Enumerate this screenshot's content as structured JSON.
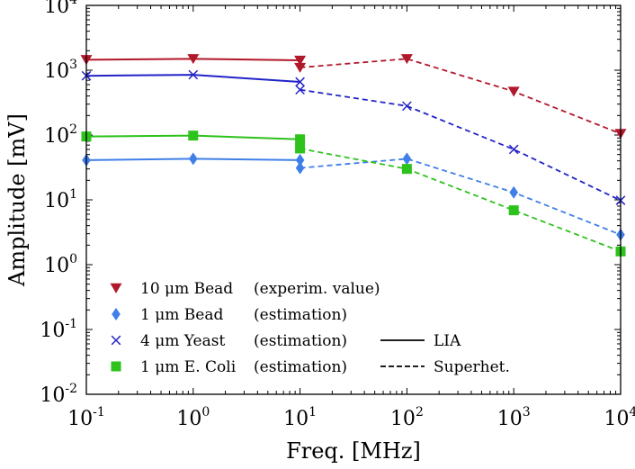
{
  "chart_data": {
    "type": "line",
    "xscale": "log",
    "yscale": "log",
    "xlabel": "Freq. [MHz]",
    "ylabel": "Amplitude [mV]",
    "xlim": [
      0.1,
      10000
    ],
    "ylim": [
      0.01,
      10000
    ],
    "x_ticks": [
      {
        "value": 0.1,
        "base": "10",
        "exp": "-1"
      },
      {
        "value": 1,
        "base": "10",
        "exp": "0"
      },
      {
        "value": 10,
        "base": "10",
        "exp": "1"
      },
      {
        "value": 100,
        "base": "10",
        "exp": "2"
      },
      {
        "value": 1000,
        "base": "10",
        "exp": "3"
      },
      {
        "value": 10000,
        "base": "10",
        "exp": "4"
      }
    ],
    "y_ticks": [
      {
        "value": 0.01,
        "base": "10",
        "exp": "-2"
      },
      {
        "value": 0.1,
        "base": "10",
        "exp": "-1"
      },
      {
        "value": 1,
        "base": "10",
        "exp": "0"
      },
      {
        "value": 10,
        "base": "10",
        "exp": "1"
      },
      {
        "value": 100,
        "base": "10",
        "exp": "2"
      },
      {
        "value": 1000,
        "base": "10",
        "exp": "3"
      },
      {
        "value": 10000,
        "base": "10",
        "exp": "4"
      }
    ],
    "series": [
      {
        "name": "10 μm Bead",
        "note": "(experim. value)",
        "color": "#b2182b",
        "marker": "triangle-down",
        "lia": {
          "x": [
            0.1,
            1,
            10
          ],
          "y": [
            1450,
            1500,
            1420
          ]
        },
        "superhet": {
          "x": [
            10,
            100,
            1000,
            10000
          ],
          "y": [
            1100,
            1500,
            470,
            105
          ]
        }
      },
      {
        "name": "1 μm  Bead",
        "note": "(estimation)",
        "color": "#3f7fe8",
        "marker": "diamond",
        "lia": {
          "x": [
            0.1,
            1,
            10
          ],
          "y": [
            41,
            43,
            41
          ]
        },
        "superhet": {
          "x": [
            10,
            100,
            1000,
            10000
          ],
          "y": [
            31,
            43,
            13,
            2.9
          ]
        }
      },
      {
        "name": "4 μm  Yeast",
        "note": "(estimation)",
        "color": "#2323c8",
        "marker": "x",
        "lia": {
          "x": [
            0.1,
            1,
            10
          ],
          "y": [
            820,
            850,
            660
          ]
        },
        "superhet": {
          "x": [
            10,
            100,
            1000,
            10000
          ],
          "y": [
            500,
            280,
            60,
            9.8
          ]
        }
      },
      {
        "name": "1 μm E. Coli",
        "note": "(estimation)",
        "color": "#2ec21c",
        "marker": "square",
        "lia": {
          "x": [
            0.1,
            1,
            10
          ],
          "y": [
            95,
            98,
            86
          ]
        },
        "superhet": {
          "x": [
            10,
            100,
            1000,
            10000
          ],
          "y": [
            62,
            30,
            6.9,
            1.6
          ]
        }
      }
    ],
    "line_styles": [
      {
        "label": "LIA",
        "dash": "solid"
      },
      {
        "label": "Superhet.",
        "dash": "dashed"
      }
    ],
    "legend_position": "bottom-left",
    "grid": false
  }
}
